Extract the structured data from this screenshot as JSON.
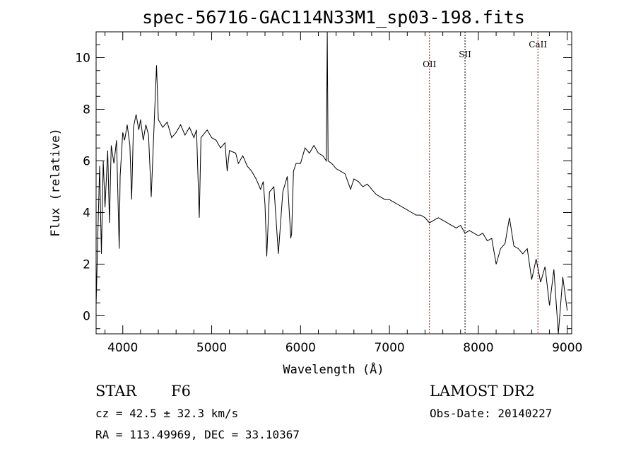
{
  "chart_data": {
    "type": "line",
    "title": "spec-56716-GAC114N33M1_sp03-198.fits",
    "xlabel": "Wavelength (Å)",
    "ylabel": "Flux (relative)",
    "xlim": [
      3700,
      9050
    ],
    "ylim": [
      -0.7,
      11.0
    ],
    "x_ticks": [
      4000,
      5000,
      6000,
      7000,
      8000,
      9000
    ],
    "x_tick_labels": [
      "4000",
      "5000",
      "6000",
      "7000",
      "8000",
      "9000"
    ],
    "y_ticks": [
      0,
      2,
      4,
      6,
      8,
      10
    ],
    "y_tick_labels": [
      "0",
      "2",
      "4",
      "6",
      "8",
      "10"
    ],
    "grid": false,
    "series": [
      {
        "points": [
          [
            3700,
            0.4
          ],
          [
            3720,
            3.2
          ],
          [
            3740,
            5.8
          ],
          [
            3760,
            2.4
          ],
          [
            3780,
            6.0
          ],
          [
            3800,
            4.2
          ],
          [
            3830,
            6.4
          ],
          [
            3850,
            3.6
          ],
          [
            3870,
            6.6
          ],
          [
            3900,
            5.9
          ],
          [
            3930,
            6.8
          ],
          [
            3960,
            2.6
          ],
          [
            3970,
            5.4
          ],
          [
            4000,
            7.1
          ],
          [
            4020,
            6.8
          ],
          [
            4050,
            7.4
          ],
          [
            4080,
            6.6
          ],
          [
            4100,
            4.5
          ],
          [
            4120,
            7.3
          ],
          [
            4150,
            7.8
          ],
          [
            4180,
            7.2
          ],
          [
            4200,
            7.6
          ],
          [
            4230,
            6.8
          ],
          [
            4260,
            7.4
          ],
          [
            4290,
            7.0
          ],
          [
            4320,
            4.6
          ],
          [
            4350,
            7.2
          ],
          [
            4380,
            9.7
          ],
          [
            4400,
            7.6
          ],
          [
            4450,
            7.3
          ],
          [
            4500,
            7.5
          ],
          [
            4550,
            6.9
          ],
          [
            4600,
            7.1
          ],
          [
            4650,
            7.4
          ],
          [
            4700,
            7.0
          ],
          [
            4750,
            7.3
          ],
          [
            4800,
            6.9
          ],
          [
            4830,
            7.2
          ],
          [
            4861,
            3.8
          ],
          [
            4880,
            6.9
          ],
          [
            4950,
            7.2
          ],
          [
            5000,
            6.9
          ],
          [
            5050,
            6.8
          ],
          [
            5100,
            6.5
          ],
          [
            5150,
            6.7
          ],
          [
            5175,
            5.6
          ],
          [
            5200,
            6.4
          ],
          [
            5270,
            6.3
          ],
          [
            5300,
            5.9
          ],
          [
            5350,
            6.2
          ],
          [
            5400,
            5.8
          ],
          [
            5450,
            5.6
          ],
          [
            5500,
            5.3
          ],
          [
            5550,
            4.9
          ],
          [
            5580,
            5.2
          ],
          [
            5600,
            4.3
          ],
          [
            5620,
            2.3
          ],
          [
            5650,
            4.8
          ],
          [
            5700,
            5.0
          ],
          [
            5750,
            2.4
          ],
          [
            5800,
            4.8
          ],
          [
            5850,
            5.4
          ],
          [
            5890,
            3.0
          ],
          [
            5900,
            3.2
          ],
          [
            5920,
            5.6
          ],
          [
            5950,
            5.9
          ],
          [
            6000,
            5.9
          ],
          [
            6050,
            6.5
          ],
          [
            6100,
            6.3
          ],
          [
            6150,
            6.6
          ],
          [
            6200,
            6.3
          ],
          [
            6250,
            6.2
          ],
          [
            6290,
            6.0
          ],
          [
            6300,
            11.0
          ],
          [
            6310,
            6.0
          ],
          [
            6350,
            5.9
          ],
          [
            6400,
            5.7
          ],
          [
            6450,
            5.6
          ],
          [
            6500,
            5.5
          ],
          [
            6563,
            4.9
          ],
          [
            6600,
            5.3
          ],
          [
            6650,
            5.2
          ],
          [
            6700,
            5.0
          ],
          [
            6750,
            5.1
          ],
          [
            6800,
            4.9
          ],
          [
            6850,
            4.7
          ],
          [
            6900,
            4.6
          ],
          [
            6950,
            4.5
          ],
          [
            7000,
            4.5
          ],
          [
            7050,
            4.4
          ],
          [
            7100,
            4.3
          ],
          [
            7150,
            4.2
          ],
          [
            7200,
            4.1
          ],
          [
            7250,
            4.0
          ],
          [
            7300,
            3.9
          ],
          [
            7350,
            3.9
          ],
          [
            7400,
            3.8
          ],
          [
            7450,
            3.6
          ],
          [
            7500,
            3.7
          ],
          [
            7550,
            3.8
          ],
          [
            7600,
            3.7
          ],
          [
            7650,
            3.6
          ],
          [
            7700,
            3.5
          ],
          [
            7750,
            3.4
          ],
          [
            7800,
            3.5
          ],
          [
            7850,
            3.2
          ],
          [
            7900,
            3.3
          ],
          [
            7950,
            3.2
          ],
          [
            8000,
            3.1
          ],
          [
            8050,
            3.2
          ],
          [
            8100,
            2.9
          ],
          [
            8150,
            3.0
          ],
          [
            8200,
            2.0
          ],
          [
            8250,
            2.6
          ],
          [
            8300,
            2.8
          ],
          [
            8350,
            3.8
          ],
          [
            8400,
            2.7
          ],
          [
            8450,
            2.6
          ],
          [
            8500,
            2.4
          ],
          [
            8550,
            2.6
          ],
          [
            8600,
            1.4
          ],
          [
            8650,
            2.2
          ],
          [
            8700,
            1.3
          ],
          [
            8750,
            1.9
          ],
          [
            8800,
            0.4
          ],
          [
            8850,
            1.8
          ],
          [
            8900,
            -0.7
          ],
          [
            8950,
            1.5
          ],
          [
            9000,
            0.2
          ]
        ]
      }
    ],
    "lines": [
      {
        "label": "OII",
        "x": 7450,
        "color": "#8b1a1a"
      },
      {
        "label": "SII",
        "x": 7850,
        "color": "#000000"
      },
      {
        "label": "CaII",
        "x": 8670,
        "color": "#8b1a1a"
      }
    ]
  },
  "info": {
    "object_class": "STAR",
    "subclass": "F6",
    "survey": "LAMOST DR2",
    "cz": "cz = 42.5 ± 32.3 km/s",
    "obs_date": "Obs-Date: 20140227",
    "coords": "RA = 113.49969, DEC =  33.10367"
  }
}
